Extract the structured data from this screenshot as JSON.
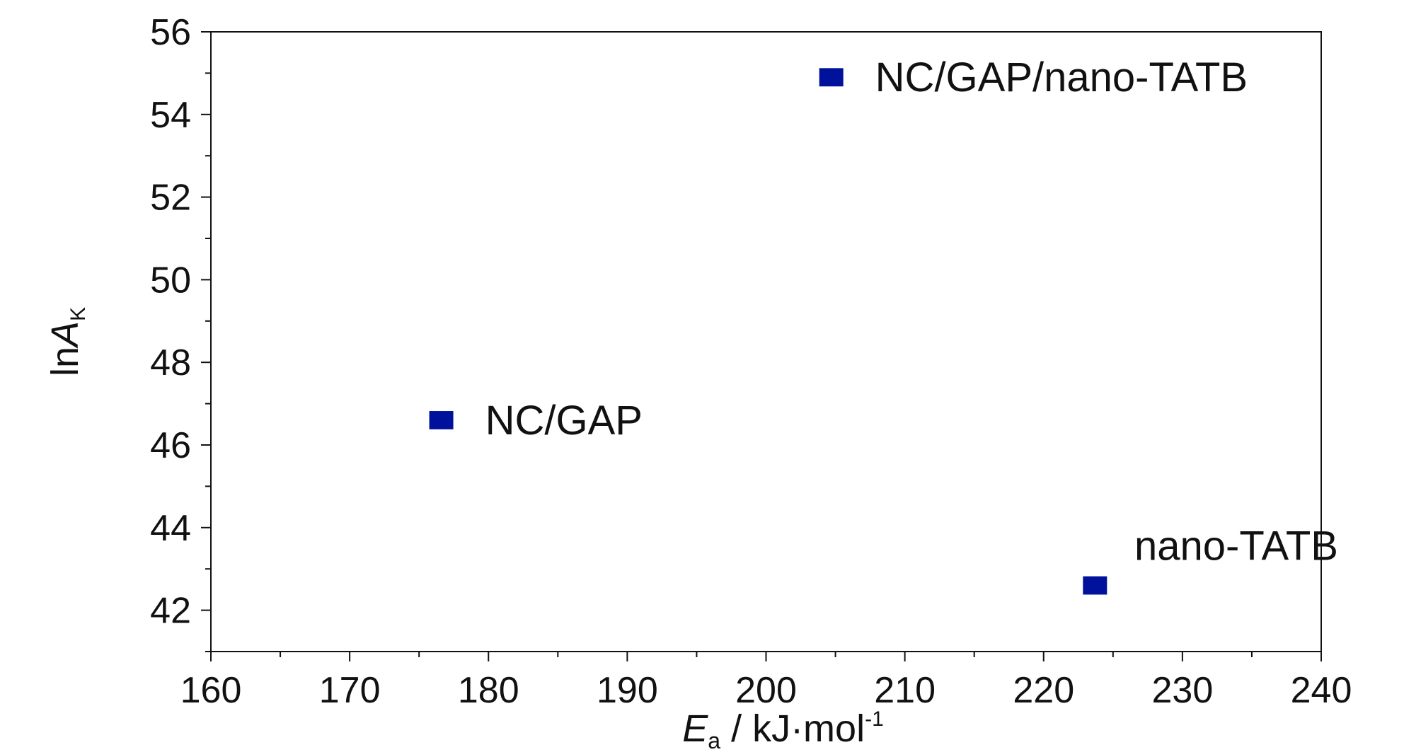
{
  "chart_data": {
    "type": "scatter",
    "xlabel": {
      "main": "E",
      "sub": "a",
      "unit": " / kJ·mol",
      "sup": "-1"
    },
    "ylabel": {
      "prefix": "ln",
      "main": "A",
      "sub": "K"
    },
    "xlim": [
      160,
      240
    ],
    "ylim": [
      41,
      56
    ],
    "x_ticks": [
      160,
      170,
      180,
      190,
      200,
      210,
      220,
      230,
      240
    ],
    "y_ticks": [
      42,
      44,
      46,
      48,
      50,
      52,
      54,
      56
    ],
    "marker_color": "#00129b",
    "points": [
      {
        "label": "NC/GAP",
        "x": 176.6,
        "y": 46.6
      },
      {
        "label": "NC/GAP/nano-TATB",
        "x": 204.7,
        "y": 54.9
      },
      {
        "label": "nano-TATB",
        "x": 223.7,
        "y": 42.6
      }
    ]
  }
}
